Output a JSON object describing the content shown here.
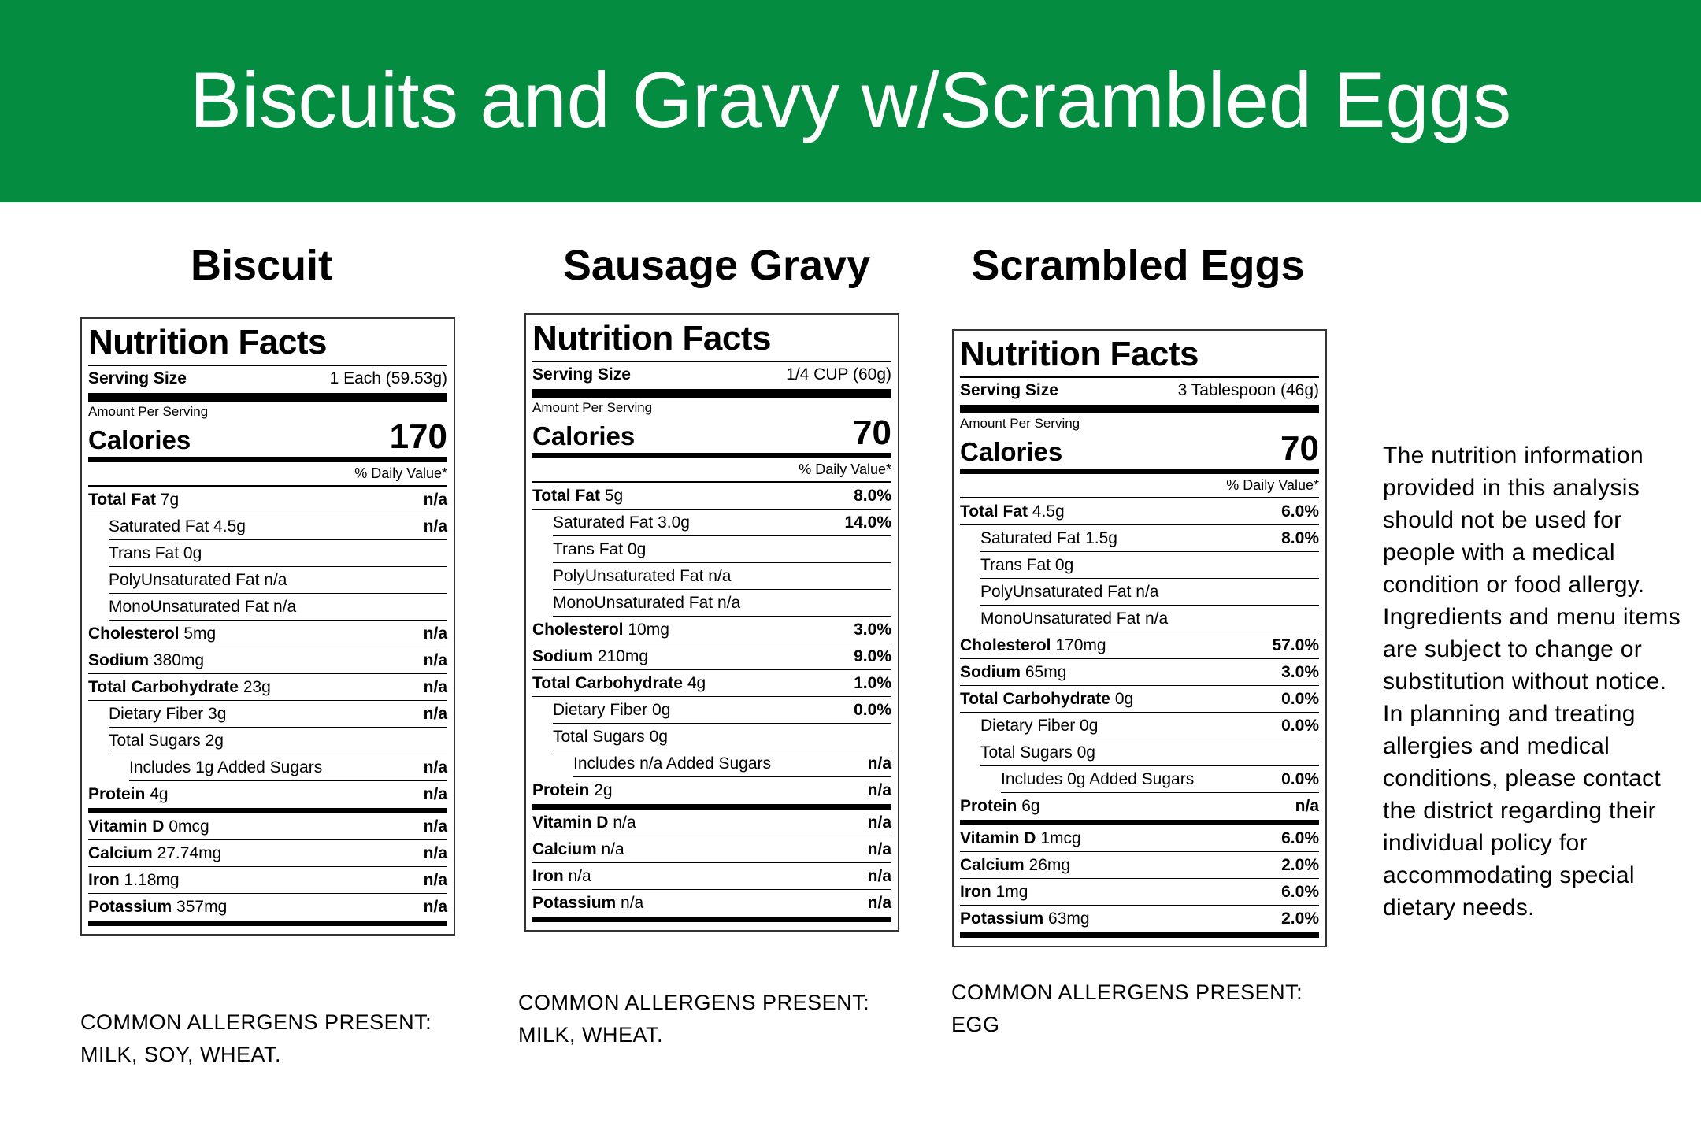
{
  "page_title": "Biscuits and Gravy w/Scrambled Eggs",
  "brand_color": "#048c41",
  "labels_common": {
    "nutrition_facts": "Nutrition Facts",
    "serving_size": "Serving Size",
    "amount_per_serving": "Amount Per Serving",
    "calories": "Calories",
    "daily_value": "% Daily Value*"
  },
  "items": [
    {
      "heading": "Biscuit",
      "serving": "1 Each (59.53g)",
      "calories": "170",
      "rows": [
        {
          "name": "Total Fat",
          "amt": "7g",
          "dv": "n/a",
          "bold": true,
          "indent": 0
        },
        {
          "name": "Saturated Fat",
          "amt": "4.5g",
          "dv": "n/a",
          "bold": false,
          "indent": 1
        },
        {
          "name": "Trans Fat",
          "amt": "0g",
          "dv": "",
          "bold": false,
          "indent": 1
        },
        {
          "name": "PolyUnsaturated Fat",
          "amt": "n/a",
          "dv": "",
          "bold": false,
          "indent": 1
        },
        {
          "name": "MonoUnsaturated Fat",
          "amt": "n/a",
          "dv": "",
          "bold": false,
          "indent": 1
        },
        {
          "name": "Cholesterol",
          "amt": "5mg",
          "dv": "n/a",
          "bold": true,
          "indent": 0
        },
        {
          "name": "Sodium",
          "amt": "380mg",
          "dv": "n/a",
          "bold": true,
          "indent": 0
        },
        {
          "name": "Total Carbohydrate",
          "amt": "23g",
          "dv": "n/a",
          "bold": true,
          "indent": 0
        },
        {
          "name": "Dietary Fiber",
          "amt": "3g",
          "dv": "n/a",
          "bold": false,
          "indent": 1
        },
        {
          "name": "Total Sugars",
          "amt": "2g",
          "dv": "",
          "bold": false,
          "indent": 1
        },
        {
          "name": "Includes",
          "amt": "1g Added Sugars",
          "dv": "n/a",
          "bold": false,
          "indent": 2
        },
        {
          "name": "Protein",
          "amt": "4g",
          "dv": "n/a",
          "bold": true,
          "indent": 0,
          "thick_after": true
        },
        {
          "name": "Vitamin D",
          "amt": "0mcg",
          "dv": "n/a",
          "bold": true,
          "indent": 0
        },
        {
          "name": "Calcium",
          "amt": "27.74mg",
          "dv": "n/a",
          "bold": true,
          "indent": 0
        },
        {
          "name": "Iron",
          "amt": "1.18mg",
          "dv": "n/a",
          "bold": true,
          "indent": 0
        },
        {
          "name": "Potassium",
          "amt": "357mg",
          "dv": "n/a",
          "bold": true,
          "indent": 0,
          "final": true
        }
      ],
      "allergens": [
        "COMMON ALLERGENS PRESENT:",
        "MILK, SOY, WHEAT."
      ]
    },
    {
      "heading": "Sausage Gravy",
      "serving": "1/4 CUP (60g)",
      "calories": "70",
      "rows": [
        {
          "name": "Total Fat",
          "amt": "5g",
          "dv": "8.0%",
          "bold": true,
          "indent": 0
        },
        {
          "name": "Saturated Fat",
          "amt": "3.0g",
          "dv": "14.0%",
          "bold": false,
          "indent": 1
        },
        {
          "name": "Trans Fat",
          "amt": "0g",
          "dv": "",
          "bold": false,
          "indent": 1
        },
        {
          "name": "PolyUnsaturated Fat",
          "amt": "n/a",
          "dv": "",
          "bold": false,
          "indent": 1
        },
        {
          "name": "MonoUnsaturated Fat",
          "amt": "n/a",
          "dv": "",
          "bold": false,
          "indent": 1
        },
        {
          "name": "Cholesterol",
          "amt": "10mg",
          "dv": "3.0%",
          "bold": true,
          "indent": 0
        },
        {
          "name": "Sodium",
          "amt": "210mg",
          "dv": "9.0%",
          "bold": true,
          "indent": 0
        },
        {
          "name": "Total Carbohydrate",
          "amt": "4g",
          "dv": "1.0%",
          "bold": true,
          "indent": 0
        },
        {
          "name": "Dietary Fiber",
          "amt": "0g",
          "dv": "0.0%",
          "bold": false,
          "indent": 1
        },
        {
          "name": "Total Sugars",
          "amt": "0g",
          "dv": "",
          "bold": false,
          "indent": 1
        },
        {
          "name": "Includes",
          "amt": "n/a Added Sugars",
          "dv": "n/a",
          "bold": false,
          "indent": 2
        },
        {
          "name": "Protein",
          "amt": "2g",
          "dv": "n/a",
          "bold": true,
          "indent": 0,
          "thick_after": true
        },
        {
          "name": "Vitamin D",
          "amt": "n/a",
          "dv": "n/a",
          "bold": true,
          "indent": 0
        },
        {
          "name": "Calcium",
          "amt": "n/a",
          "dv": "n/a",
          "bold": true,
          "indent": 0
        },
        {
          "name": "Iron",
          "amt": "n/a",
          "dv": "n/a",
          "bold": true,
          "indent": 0
        },
        {
          "name": "Potassium",
          "amt": "n/a",
          "dv": "n/a",
          "bold": true,
          "indent": 0,
          "final": true
        }
      ],
      "allergens": [
        "COMMON ALLERGENS PRESENT:",
        "MILK, WHEAT."
      ]
    },
    {
      "heading": "Scrambled Eggs",
      "serving": "3 Tablespoon (46g)",
      "calories": "70",
      "rows": [
        {
          "name": "Total Fat",
          "amt": "4.5g",
          "dv": "6.0%",
          "bold": true,
          "indent": 0
        },
        {
          "name": "Saturated Fat",
          "amt": "1.5g",
          "dv": "8.0%",
          "bold": false,
          "indent": 1
        },
        {
          "name": "Trans Fat",
          "amt": "0g",
          "dv": "",
          "bold": false,
          "indent": 1
        },
        {
          "name": "PolyUnsaturated Fat",
          "amt": "n/a",
          "dv": "",
          "bold": false,
          "indent": 1
        },
        {
          "name": "MonoUnsaturated Fat",
          "amt": "n/a",
          "dv": "",
          "bold": false,
          "indent": 1
        },
        {
          "name": "Cholesterol",
          "amt": "170mg",
          "dv": "57.0%",
          "bold": true,
          "indent": 0
        },
        {
          "name": "Sodium",
          "amt": "65mg",
          "dv": "3.0%",
          "bold": true,
          "indent": 0
        },
        {
          "name": "Total Carbohydrate",
          "amt": "0g",
          "dv": "0.0%",
          "bold": true,
          "indent": 0
        },
        {
          "name": "Dietary Fiber",
          "amt": "0g",
          "dv": "0.0%",
          "bold": false,
          "indent": 1
        },
        {
          "name": "Total Sugars",
          "amt": "0g",
          "dv": "",
          "bold": false,
          "indent": 1
        },
        {
          "name": "Includes",
          "amt": "0g Added Sugars",
          "dv": "0.0%",
          "bold": false,
          "indent": 2
        },
        {
          "name": "Protein",
          "amt": "6g",
          "dv": "n/a",
          "bold": true,
          "indent": 0,
          "thick_after": true
        },
        {
          "name": "Vitamin D",
          "amt": "1mcg",
          "dv": "6.0%",
          "bold": true,
          "indent": 0
        },
        {
          "name": "Calcium",
          "amt": "26mg",
          "dv": "2.0%",
          "bold": true,
          "indent": 0
        },
        {
          "name": "Iron",
          "amt": "1mg",
          "dv": "6.0%",
          "bold": true,
          "indent": 0
        },
        {
          "name": "Potassium",
          "amt": "63mg",
          "dv": "2.0%",
          "bold": true,
          "indent": 0,
          "final": true
        }
      ],
      "allergens": [
        "COMMON ALLERGENS PRESENT:",
        "EGG"
      ]
    }
  ],
  "note": "The nutrition information provided in this analysis should not be used for people with a medical condition or food allergy. Ingredients and menu items are subject to change or substitution without notice. In planning and treating allergies and medical conditions, please contact the district regarding their individual policy for accommodating special dietary needs."
}
